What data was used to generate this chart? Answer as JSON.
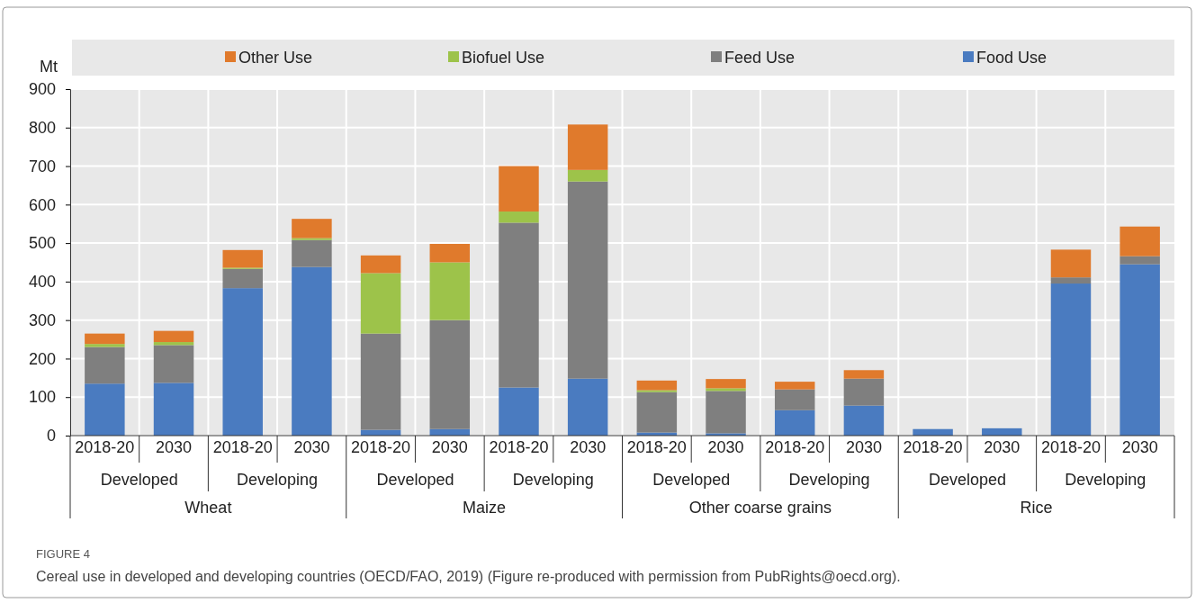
{
  "chart_data": {
    "type": "bar",
    "stacked": true,
    "ylabel": "Mt",
    "categories": [
      "2018-20",
      "2030",
      "2018-20",
      "2030",
      "2018-20",
      "2030",
      "2018-20",
      "2030",
      "2018-20",
      "2030",
      "2018-20",
      "2030",
      "2018-20",
      "2030",
      "2018-20",
      "2030"
    ],
    "series": [
      {
        "name": "Food Use",
        "color": "#4a7bc0",
        "values": [
          135,
          137,
          383,
          438,
          15,
          17,
          125,
          148,
          8,
          6,
          66,
          78,
          17,
          19,
          395,
          445
        ]
      },
      {
        "name": "Feed Use",
        "color": "#7f7f7f",
        "values": [
          95,
          98,
          50,
          70,
          250,
          283,
          428,
          512,
          105,
          110,
          54,
          70,
          0,
          0,
          16,
          21
        ]
      },
      {
        "name": "Biofuel Use",
        "color": "#9dc34a",
        "values": [
          8,
          8,
          3,
          5,
          157,
          150,
          29,
          30,
          5,
          7,
          0,
          0,
          0,
          0,
          0,
          0
        ]
      },
      {
        "name": "Other Use",
        "color": "#e07a2c",
        "values": [
          27,
          29,
          46,
          50,
          46,
          48,
          118,
          118,
          25,
          24,
          20,
          22,
          0,
          0,
          72,
          77
        ]
      }
    ],
    "ylim": [
      0,
      900
    ],
    "yticks": [
      0,
      100,
      200,
      300,
      400,
      500,
      600,
      700,
      800,
      900
    ],
    "grid": true,
    "legend": "top",
    "annotations": [
      "Developed",
      "Developing",
      "Developed",
      "Developing",
      "Developed",
      "Developing",
      "Developed",
      "Developing",
      "Wheat",
      "Maize",
      "Other coarse grains",
      "Rice",
      "FIGURE 4",
      "Cereal use in developed and developing countries (OECD/FAO, 2019) (Figure re-produced with permission from PubRights@oecd.org)."
    ]
  }
}
